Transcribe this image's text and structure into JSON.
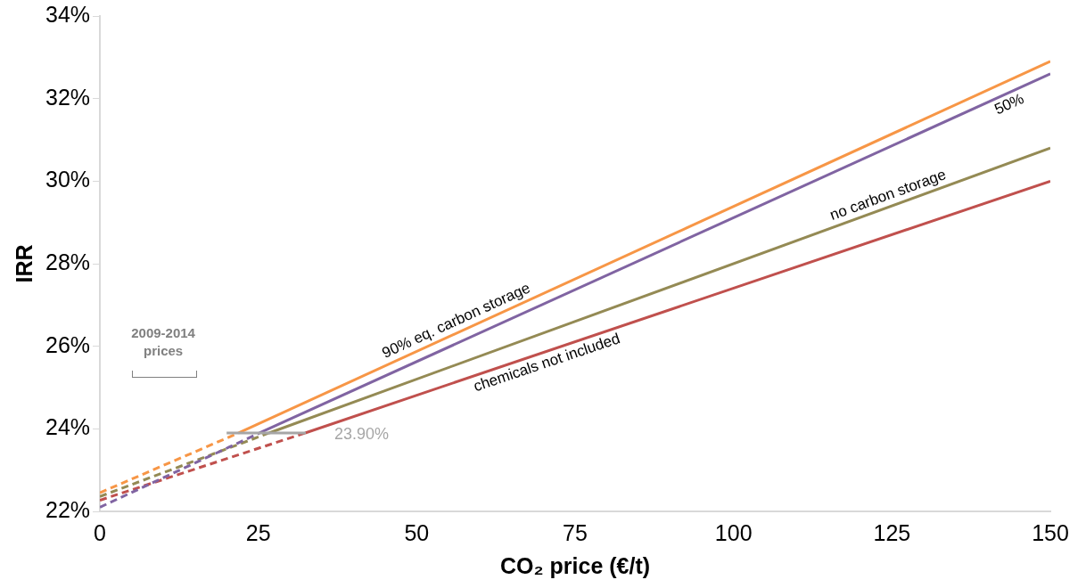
{
  "chart_data": {
    "type": "line",
    "xlabel": "CO₂ price (€/t)",
    "ylabel": "IRR",
    "xlim": [
      0,
      150
    ],
    "xticks": [
      0,
      25,
      50,
      75,
      100,
      125,
      150
    ],
    "ylim": [
      22,
      34
    ],
    "yticks": [
      {
        "value": 22,
        "label": "22%"
      },
      {
        "value": 24,
        "label": "24%"
      },
      {
        "value": 26,
        "label": "26%"
      },
      {
        "value": 28,
        "label": "28%"
      },
      {
        "value": 30,
        "label": "30%"
      },
      {
        "value": 32,
        "label": "32%"
      },
      {
        "value": 34,
        "label": "34%"
      }
    ],
    "grid": false,
    "legend": false,
    "marker": "none",
    "series": [
      {
        "color": "#f79646",
        "line_style": "dashed",
        "x": [
          0,
          21.9
        ],
        "values": [
          22.45,
          23.9
        ]
      },
      {
        "color": "#8064a2",
        "line_style": "dashed",
        "x": [
          0,
          25.2
        ],
        "values": [
          22.1,
          23.9
        ]
      },
      {
        "color": "#948a54",
        "line_style": "dashed",
        "x": [
          0,
          26.7
        ],
        "values": [
          22.36,
          23.9
        ]
      },
      {
        "color": "#c0504d",
        "line_style": "dashed",
        "x": [
          0,
          32.4
        ],
        "values": [
          22.27,
          23.9
        ]
      },
      {
        "name": "90% eq. carbon storage",
        "color": "#f79646",
        "line_style": "solid",
        "x": [
          21.9,
          150
        ],
        "values": [
          23.9,
          32.9
        ]
      },
      {
        "name": "50%",
        "color": "#8064a2",
        "line_style": "solid",
        "x": [
          25.2,
          150
        ],
        "values": [
          23.9,
          32.6
        ]
      },
      {
        "name": "no carbon storage",
        "color": "#948a54",
        "line_style": "solid",
        "x": [
          26.7,
          150
        ],
        "values": [
          23.9,
          30.8
        ]
      },
      {
        "name": "chemicals not included",
        "color": "#c0504d",
        "line_style": "solid",
        "x": [
          32.4,
          150
        ],
        "values": [
          23.9,
          30.0
        ]
      }
    ],
    "ref_lines": [
      {
        "axis": "y",
        "value": 23.9,
        "label": "23.90%",
        "color": "#a6a6a6"
      }
    ],
    "annotations": [
      "2009-2014 prices"
    ]
  }
}
